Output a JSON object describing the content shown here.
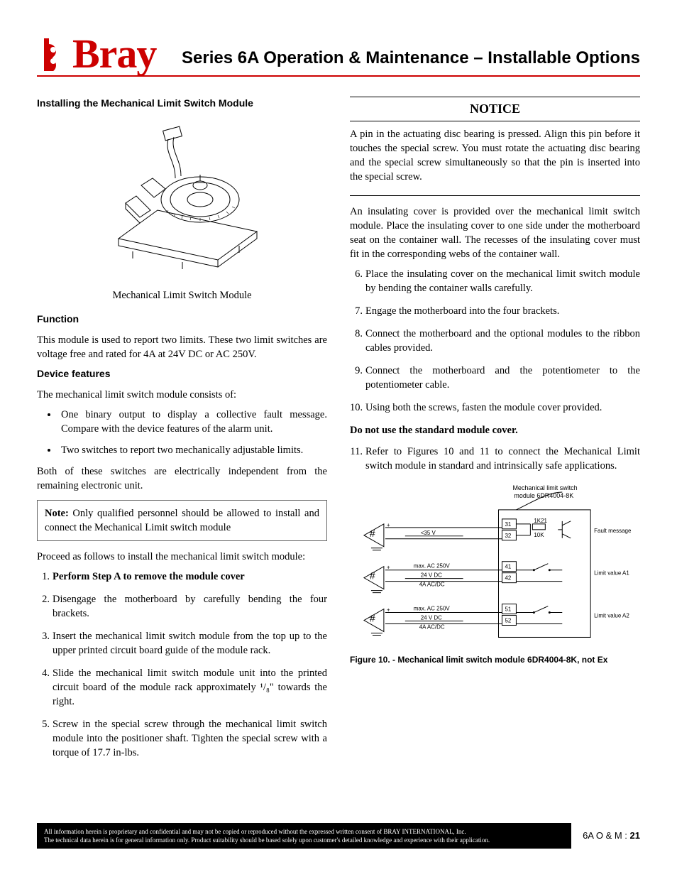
{
  "brand": {
    "name": "Bray",
    "color": "#cc0000"
  },
  "page_title": "Series 6A Operation & Maintenance – Installable Options",
  "left": {
    "h_install": "Installing the Mechanical Limit Switch Module",
    "module_caption": "Mechanical Limit Switch Module",
    "h_function": "Function",
    "p_function": "This module is used to report two limits. These two limit switches are voltage free and rated for 4A at 24V DC or AC 250V.",
    "h_features": "Device features",
    "p_features_lead": "The mechanical limit switch module consists of:",
    "features": [
      "One binary output to display a collective fault message. Compare with the device features of the alarm unit.",
      "Two switches to report two mechanically adjustable limits."
    ],
    "p_features_tail": "Both of these switches are electrically independent from the remaining electronic unit.",
    "note_prefix": "Note:",
    "note": " Only qualified personnel should be allowed to install and connect the Mechanical Limit switch module",
    "p_proceed": "Proceed as follows to install the mechanical limit switch module:",
    "steps": [
      "Perform Step A to remove the module cover",
      "Disengage the motherboard by carefully bending the four brackets.",
      "Insert the mechanical limit switch module from the top up to the upper printed circuit board guide of the module rack.",
      "Slide the mechanical limit switch module unit into the printed circuit board of the module rack approximately ¹/₈\" towards the right.",
      "Screw in the special screw through the mechanical limit switch module into the positioner shaft. Tighten the special screw with a torque of 17.7 in-lbs."
    ]
  },
  "right": {
    "notice_title": "NOTICE",
    "notice_body": "A pin in the actuating disc bearing is pressed. Align this pin before it touches the special screw. You must rotate the actuating disc bearing and the special screw simultaneously so that the pin is inserted into the special screw.",
    "p_insul": "An insulating cover is provided over the mechanical limit switch module. Place the insulating cover to one side under the motherboard seat on the container wall. The recesses of the insulating cover must fit in the corresponding webs of the container wall.",
    "steps": [
      "Place the insulating cover on the mechanical limit switch module by bending the container walls carefully.",
      "Engage the motherboard into the four brackets.",
      "Connect the motherboard and the optional modules to the ribbon cables provided.",
      "Connect the motherboard and the potentiometer to the potentiometer cable.",
      "Using both the screws, fasten the module cover provided."
    ],
    "warn": "Do not use the standard module cover.",
    "step11": "Refer to Figures 10 and 11 to connect the Mechanical Limit switch module in standard and intrinsically safe applications.",
    "fig10_caption": "Figure 10. - Mechanical limit switch module 6DR4004-8K, not Ex",
    "wiring": {
      "title1": "Mechanical limit switch",
      "title2": "module 6DR4004-8K",
      "rows": [
        {
          "top": "",
          "mid": "<35 V",
          "bot": "",
          "t1": "31",
          "t2": "32",
          "out": "Fault message",
          "r": "1K21",
          "r2": "10K"
        },
        {
          "top": "max. AC 250V",
          "mid": "24 V DC",
          "bot": "4A AC/DC",
          "t1": "41",
          "t2": "42",
          "out": "Limit value A1"
        },
        {
          "top": "max. AC 250V",
          "mid": "24 V DC",
          "bot": "4A AC/DC",
          "t1": "51",
          "t2": "52",
          "out": "Limit value A2"
        }
      ]
    }
  },
  "footer": {
    "l1": "All information herein is proprietary and confidential and may not be copied or reproduced without the expressed written consent of BRAY INTERNATIONAL, Inc.",
    "l2": "The technical data herein is for general information only. Product suitability should be based solely upon customer's detailed knowledge and experience with their application.",
    "page_label": "6A O & M : ",
    "page_num": "21"
  }
}
